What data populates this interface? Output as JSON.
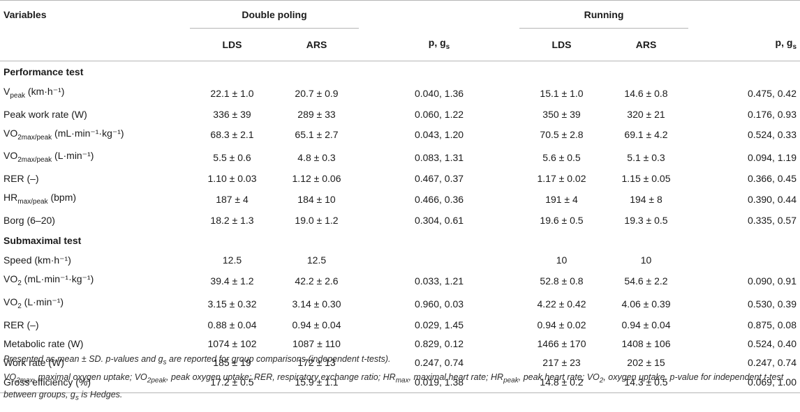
{
  "header": {
    "variables": "Variables",
    "group1": "Double poling",
    "group2": "Running",
    "col_lds": "LDS",
    "col_ars": "ARS",
    "col_p": "p, g",
    "col_p_sub": "s"
  },
  "sections": [
    {
      "title": "Performance test",
      "rows": [
        {
          "label": "V",
          "sub": "peak",
          "unit": " (km·h⁻¹)",
          "dp_lds": "22.1 ± 1.0",
          "dp_ars": "20.7 ± 0.9",
          "dp_p": "0.040, 1.36",
          "r_lds": "15.1 ± 1.0",
          "r_ars": "14.6 ± 0.8",
          "r_p": "0.475, 0.42"
        },
        {
          "label": "Peak work rate (W)",
          "sub": "",
          "unit": "",
          "dp_lds": "336 ± 39",
          "dp_ars": "289 ± 33",
          "dp_p": "0.060, 1.22",
          "r_lds": "350 ± 39",
          "r_ars": "320 ± 21",
          "r_p": "0.176, 0.93"
        },
        {
          "label": "VO",
          "sub": "2max/peak",
          "unit": " (mL·min⁻¹·kg⁻¹)",
          "dp_lds": "68.3 ± 2.1",
          "dp_ars": "65.1 ± 2.7",
          "dp_p": "0.043, 1.20",
          "r_lds": "70.5 ± 2.8",
          "r_ars": "69.1 ± 4.2",
          "r_p": "0.524, 0.33"
        },
        {
          "label": "VO",
          "sub": "2max/peak",
          "unit": " (L·min⁻¹)",
          "dp_lds": "5.5 ± 0.6",
          "dp_ars": "4.8 ± 0.3",
          "dp_p": "0.083, 1.31",
          "r_lds": "5.6 ± 0.5",
          "r_ars": "5.1 ± 0.3",
          "r_p": "0.094, 1.19"
        },
        {
          "label": "RER (–)",
          "sub": "",
          "unit": "",
          "dp_lds": "1.10 ± 0.03",
          "dp_ars": "1.12 ± 0.06",
          "dp_p": "0.467, 0.37",
          "r_lds": "1.17 ± 0.02",
          "r_ars": "1.15 ± 0.05",
          "r_p": "0.366, 0.45"
        },
        {
          "label": "HR",
          "sub": "max/peak",
          "unit": " (bpm)",
          "dp_lds": "187 ± 4",
          "dp_ars": "184 ± 10",
          "dp_p": "0.466, 0.36",
          "r_lds": "191 ± 4",
          "r_ars": "194 ± 8",
          "r_p": "0.390, 0.44"
        },
        {
          "label": "Borg (6–20)",
          "sub": "",
          "unit": "",
          "dp_lds": "18.2 ± 1.3",
          "dp_ars": "19.0 ± 1.2",
          "dp_p": "0.304, 0.61",
          "r_lds": "19.6 ± 0.5",
          "r_ars": "19.3 ± 0.5",
          "r_p": "0.335, 0.57"
        }
      ]
    },
    {
      "title": "Submaximal test",
      "rows": [
        {
          "label": "Speed (km·h⁻¹)",
          "sub": "",
          "unit": "",
          "dp_lds": "12.5",
          "dp_ars": "12.5",
          "dp_p": "",
          "r_lds": "10",
          "r_ars": "10",
          "r_p": ""
        },
        {
          "label": "VO",
          "sub": "2",
          "unit": " (mL·min⁻¹·kg⁻¹)",
          "dp_lds": "39.4 ± 1.2",
          "dp_ars": "42.2 ± 2.6",
          "dp_p": "0.033, 1.21",
          "r_lds": "52.8 ± 0.8",
          "r_ars": "54.6 ± 2.2",
          "r_p": "0.090, 0.91"
        },
        {
          "label": "VO",
          "sub": "2",
          "unit": " (L·min⁻¹)",
          "dp_lds": "3.15 ± 0.32",
          "dp_ars": "3.14 ± 0.30",
          "dp_p": "0.960, 0.03",
          "r_lds": "4.22 ± 0.42",
          "r_ars": "4.06 ± 0.39",
          "r_p": "0.530, 0.39"
        },
        {
          "label": "RER (–)",
          "sub": "",
          "unit": "",
          "dp_lds": "0.88 ± 0.04",
          "dp_ars": "0.94 ± 0.04",
          "dp_p": "0.029, 1.45",
          "r_lds": "0.94 ± 0.02",
          "r_ars": "0.94 ± 0.04",
          "r_p": "0.875, 0.08"
        },
        {
          "label": "Metabolic rate (W)",
          "sub": "",
          "unit": "",
          "dp_lds": "1074 ± 102",
          "dp_ars": "1087 ± 110",
          "dp_p": "0.829, 0.12",
          "r_lds": "1466 ± 170",
          "r_ars": "1408 ± 106",
          "r_p": "0.524, 0.40"
        },
        {
          "label": "Work rate (W)",
          "sub": "",
          "unit": "",
          "dp_lds": "185 ± 19",
          "dp_ars": "172 ± 13",
          "dp_p": "0.247, 0.74",
          "r_lds": "217 ± 23",
          "r_ars": "202 ± 15",
          "r_p": "0.247, 0.74"
        },
        {
          "label": "Gross efficiency (%)",
          "sub": "",
          "unit": "",
          "dp_lds": "17.2 ± 0.5",
          "dp_ars": "15.9 ± 1.1",
          "dp_p": "0.019, 1.38",
          "r_lds": "14.8 ± 0.2",
          "r_ars": "14.3 ± 0.5",
          "r_p": "0.069, 1.00"
        }
      ]
    }
  ],
  "footnote": {
    "line1_pre": "Presented as mean ± SD. p-values and g",
    "line1_sub": "s",
    "line1_post": " are reported for group comparisons (independent t-tests).",
    "line2": [
      {
        "t": "VO"
      },
      {
        "s": "2max"
      },
      {
        "t": ", maximal oxygen uptake; VO"
      },
      {
        "s": "2peak"
      },
      {
        "t": ", peak oxygen uptake; RER, respiratory exchange ratio; HR"
      },
      {
        "s": "max"
      },
      {
        "t": ", maximal heart rate; HR"
      },
      {
        "s": "peak"
      },
      {
        "t": ", peak heart rate; VO"
      },
      {
        "s": "2"
      },
      {
        "t": ", oxygen uptake. p-value for independent t-test between groups, g"
      },
      {
        "s": "s"
      },
      {
        "t": " is Hedges."
      }
    ]
  }
}
